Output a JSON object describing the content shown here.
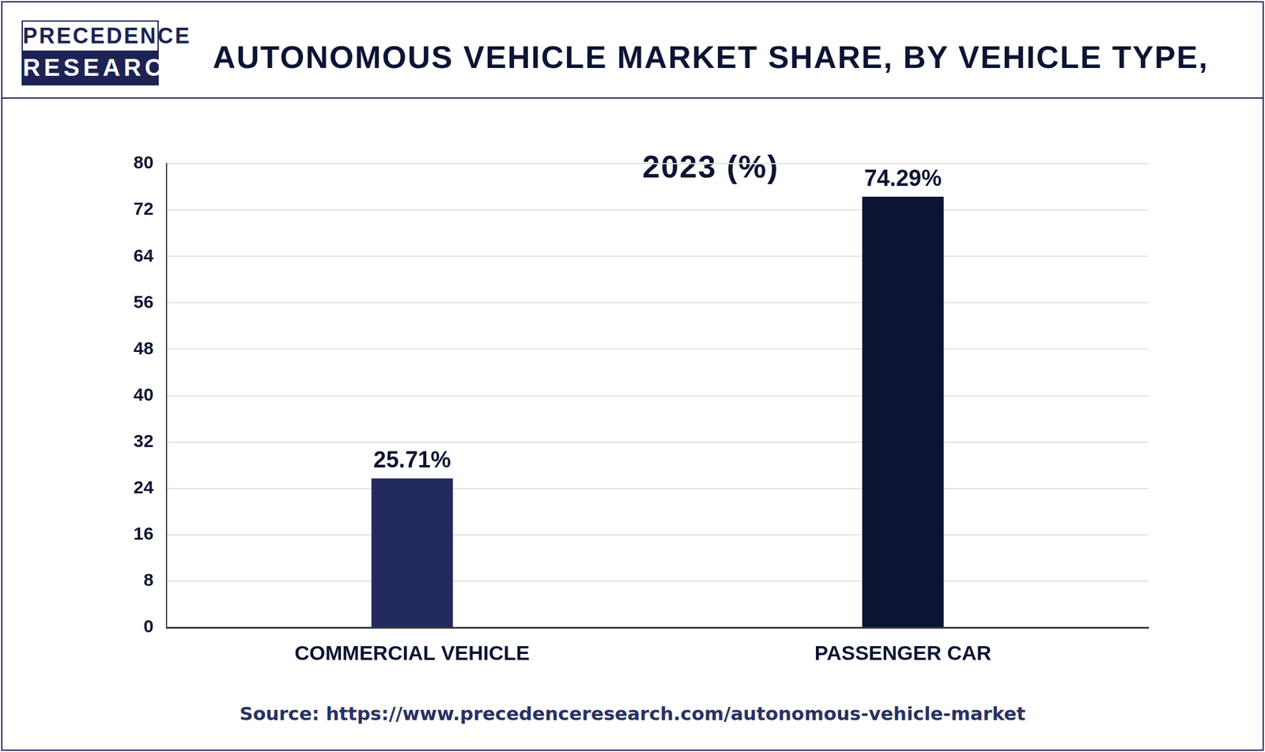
{
  "header": {
    "logo": [
      "PRECEDENCE",
      "RESEARCH"
    ]
  },
  "chart_data": {
    "type": "bar",
    "title": "AUTONOMOUS VEHICLE MARKET SHARE, BY VEHICLE TYPE, 2023 (%)",
    "categories": [
      "COMMERCIAL VEHICLE",
      "PASSENGER CAR"
    ],
    "values": [
      25.71,
      74.29
    ],
    "value_labels": [
      "25.71%",
      "74.29%"
    ],
    "colors": [
      "#232a5e",
      "#0c1433"
    ],
    "ylim": [
      0,
      80
    ],
    "yticks": [
      0,
      8,
      16,
      24,
      32,
      40,
      48,
      56,
      64,
      72,
      80
    ],
    "grid": true,
    "data_labels": true
  },
  "source": "Source: https://www.precedenceresearch.com/autonomous-vehicle-market"
}
